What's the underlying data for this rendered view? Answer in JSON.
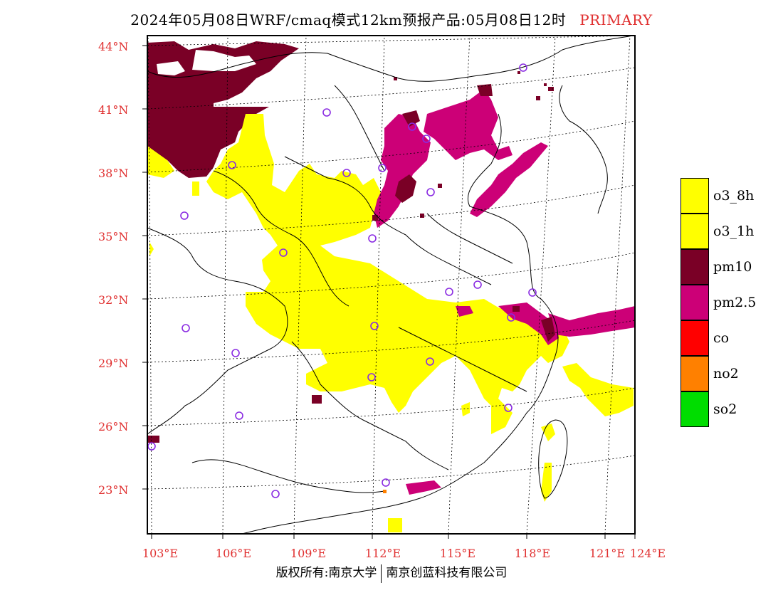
{
  "title": {
    "main": "2024年05月08日WRF/cmaq模式12km预报产品:05月08日12时",
    "tag": "PRIMARY"
  },
  "lat_labels": [
    "44°N",
    "41°N",
    "38°N",
    "35°N",
    "32°N",
    "29°N",
    "26°N",
    "23°N"
  ],
  "lon_labels": [
    "103°E",
    "106°E",
    "109°E",
    "112°E",
    "115°E",
    "118°E",
    "121°E",
    "124°E"
  ],
  "legend": [
    {
      "label": "o3_8h",
      "color": "#ffff00"
    },
    {
      "label": "o3_1h",
      "color": "#ffff00"
    },
    {
      "label": "pm10",
      "color": "#7a0026"
    },
    {
      "label": "pm2.5",
      "color": "#cc0077"
    },
    {
      "label": "co",
      "color": "#ff0000"
    },
    {
      "label": "no2",
      "color": "#ff8000"
    },
    {
      "label": "so2",
      "color": "#00dd00"
    }
  ],
  "footer": {
    "left": "版权所有:南京大学",
    "right": "南京创蓝科技有限公司"
  },
  "colors": {
    "o3": "#ffff00",
    "pm10": "#7a0026",
    "pm25": "#cc0077",
    "station": "#8a2be2",
    "label_red": "#e03030"
  }
}
